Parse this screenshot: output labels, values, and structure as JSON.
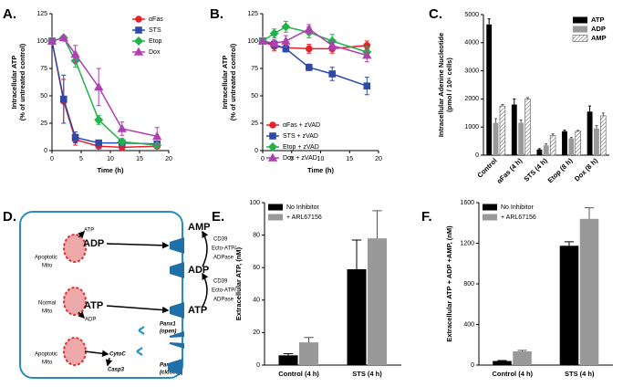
{
  "chart_data": [
    {
      "panel_label": "A.",
      "type": "line",
      "ylabel": [
        "Intracellular ATP",
        "(% of untreated control)"
      ],
      "xlabel": "Time (h)",
      "x": [
        0,
        2,
        4,
        8,
        12,
        18
      ],
      "xlim": [
        0,
        20
      ],
      "xticks": [
        0,
        5,
        10,
        15,
        20
      ],
      "ylim": [
        0,
        125
      ],
      "yticks": [
        0,
        25,
        50,
        75,
        100,
        125
      ],
      "legend": "upper right",
      "series": [
        {
          "name": "αFas",
          "color": "#e8202a",
          "marker": "circle",
          "values": [
            100,
            45,
            10,
            4,
            3,
            4
          ],
          "errors": [
            0,
            20,
            5,
            2,
            2,
            2
          ]
        },
        {
          "name": "STS",
          "color": "#2e4aa8",
          "marker": "square",
          "values": [
            100,
            47,
            12,
            7,
            7,
            6
          ],
          "errors": [
            0,
            22,
            5,
            2,
            2,
            2
          ]
        },
        {
          "name": "Etop",
          "color": "#22b24c",
          "marker": "diamond",
          "values": [
            100,
            103,
            82,
            28,
            8,
            5
          ],
          "errors": [
            0,
            2,
            6,
            4,
            3,
            2
          ]
        },
        {
          "name": "Dox",
          "color": "#b040b0",
          "marker": "triangle",
          "values": [
            100,
            103,
            88,
            58,
            20,
            13
          ],
          "errors": [
            0,
            2,
            8,
            17,
            6,
            8
          ]
        }
      ]
    },
    {
      "panel_label": "B.",
      "type": "line",
      "ylabel": [
        "Intracellular ATP",
        "(% of untreated control)"
      ],
      "xlabel": "Time (h)",
      "x": [
        0,
        2,
        4,
        8,
        12,
        18
      ],
      "xlim": [
        0,
        20
      ],
      "xticks": [
        0,
        5,
        10,
        15,
        20
      ],
      "ylim": [
        0,
        125
      ],
      "yticks": [
        0,
        25,
        50,
        75,
        100,
        125
      ],
      "legend": "lower left",
      "series": [
        {
          "name": "αFas + zVAD",
          "color": "#e8202a",
          "marker": "circle",
          "values": [
            100,
            95,
            94,
            93,
            93,
            96
          ],
          "errors": [
            0,
            4,
            4,
            4,
            4,
            4
          ]
        },
        {
          "name": "STS + zVAD",
          "color": "#2e4aa8",
          "marker": "square",
          "values": [
            100,
            97,
            93,
            76,
            70,
            59
          ],
          "errors": [
            0,
            3,
            3,
            3,
            6,
            8
          ]
        },
        {
          "name": "Etop + zVAD",
          "color": "#22b24c",
          "marker": "diamond",
          "values": [
            100,
            107,
            113,
            108,
            100,
            90
          ],
          "errors": [
            0,
            4,
            5,
            5,
            6,
            5
          ]
        },
        {
          "name": "Dox + zVAD",
          "color": "#b040b0",
          "marker": "triangle",
          "values": [
            100,
            98,
            100,
            111,
            96,
            87
          ],
          "errors": [
            0,
            3,
            5,
            4,
            4,
            6
          ]
        }
      ]
    },
    {
      "panel_label": "C.",
      "type": "bar",
      "ylabel": [
        "Intracellular Adenine Nucleotide",
        "(pmol / 10⁶ cells)"
      ],
      "categories": [
        "Control",
        "αFas (4 h)",
        "STS (4 h)",
        "Etop (8 h)",
        "Dox (8 h)"
      ],
      "ylim": [
        0,
        5000
      ],
      "yticks": [
        0,
        1000,
        2000,
        3000,
        4000,
        5000
      ],
      "legend": "upper right",
      "series": [
        {
          "name": "ATP",
          "color": "#000000",
          "values": [
            4650,
            1800,
            200,
            850,
            1550
          ],
          "errors": [
            200,
            200,
            30,
            40,
            200
          ]
        },
        {
          "name": "ADP",
          "color": "#999999",
          "values": [
            1150,
            1150,
            350,
            600,
            950
          ],
          "errors": [
            150,
            100,
            50,
            30,
            100
          ]
        },
        {
          "name": "AMP",
          "color": "#555555",
          "pattern": "hatch",
          "values": [
            1750,
            2000,
            700,
            850,
            1400
          ],
          "errors": [
            50,
            50,
            60,
            30,
            100
          ]
        }
      ]
    },
    {
      "panel_label": "E.",
      "type": "bar",
      "ylabel": [
        "Extracellular ATP, (nM)"
      ],
      "categories": [
        "Control (4 h)",
        "STS (4 h)"
      ],
      "ylim": [
        0,
        100
      ],
      "yticks": [
        0,
        20,
        40,
        60,
        80,
        100
      ],
      "legend": "upper left",
      "series": [
        {
          "name": "No Inhibitor",
          "color": "#000000",
          "values": [
            6,
            59
          ],
          "errors": [
            1,
            18
          ]
        },
        {
          "name": "+ ARL67156",
          "color": "#999999",
          "values": [
            14,
            78
          ],
          "errors": [
            3,
            17
          ]
        }
      ]
    },
    {
      "panel_label": "F.",
      "type": "bar",
      "ylabel": [
        "Extracellular ATP + ADP +AMP, (nM)"
      ],
      "categories": [
        "Control (4 h)",
        "STS (4 h)"
      ],
      "ylim": [
        0,
        1600
      ],
      "yticks": [
        0,
        400,
        800,
        1200,
        1600
      ],
      "legend": "upper left",
      "series": [
        {
          "name": "No Inhibitor",
          "color": "#000000",
          "values": [
            40,
            1175
          ],
          "errors": [
            5,
            40
          ]
        },
        {
          "name": "+ ARL67156",
          "color": "#999999",
          "values": [
            135,
            1440
          ],
          "errors": [
            10,
            110
          ]
        }
      ]
    }
  ],
  "diagram": {
    "panel_label": "D.",
    "texts": [
      "Apoptotic",
      "Mito",
      "ATP",
      "ADP",
      "Normal",
      "Mito",
      "ATP",
      "ADP",
      "Apoptotic",
      "Mito",
      "CytoC",
      "Casp3",
      "Panx1",
      "(open)",
      "Panx1",
      "(closed)",
      "AMP",
      "CD39",
      "Ecto-ATP/",
      "ADPase",
      "ADP",
      "CD39",
      "Ecto-ATP/",
      "ADPase",
      "ATP"
    ]
  }
}
